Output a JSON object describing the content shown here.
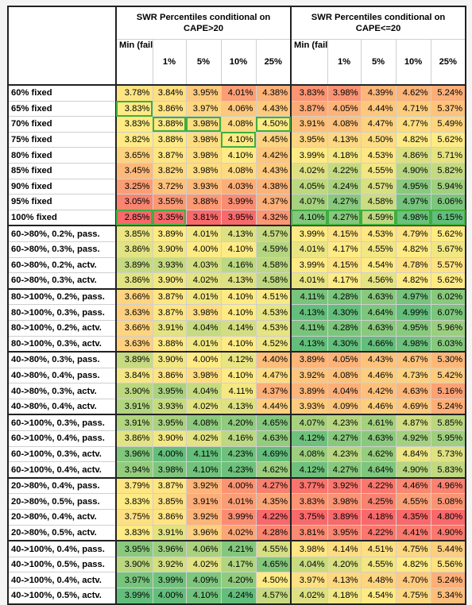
{
  "header": {
    "group_cape_high": "SWR Percentiles conditional on CAPE>20",
    "group_cape_low": "SWR Percentiles conditional on CAPE<=20",
    "columns": [
      "Min (fail-safe)",
      "1%",
      "5%",
      "10%",
      "25%"
    ]
  },
  "rows": [
    {
      "label": "60% fixed",
      "high": [
        "3.78%",
        "3.84%",
        "3.95%",
        "4.01%",
        "4.38%"
      ],
      "low": [
        "3.83%",
        "3.98%",
        "4.39%",
        "4.62%",
        "5.24%"
      ]
    },
    {
      "label": "65% fixed",
      "high": [
        "3.83%",
        "3.86%",
        "3.97%",
        "4.06%",
        "4.43%"
      ],
      "low": [
        "3.87%",
        "4.05%",
        "4.44%",
        "4.71%",
        "5.37%"
      ]
    },
    {
      "label": "70% fixed",
      "high": [
        "3.83%",
        "3.88%",
        "3.98%",
        "4.08%",
        "4.50%"
      ],
      "low": [
        "3.91%",
        "4.08%",
        "4.47%",
        "4.77%",
        "5.49%"
      ]
    },
    {
      "label": "75% fixed",
      "high": [
        "3.82%",
        "3.88%",
        "3.98%",
        "4.10%",
        "4.45%"
      ],
      "low": [
        "3.95%",
        "4.13%",
        "4.50%",
        "4.82%",
        "5.62%"
      ]
    },
    {
      "label": "80% fixed",
      "high": [
        "3.65%",
        "3.87%",
        "3.98%",
        "4.10%",
        "4.42%"
      ],
      "low": [
        "3.99%",
        "4.18%",
        "4.53%",
        "4.86%",
        "5.71%"
      ]
    },
    {
      "label": "85% fixed",
      "high": [
        "3.45%",
        "3.82%",
        "3.98%",
        "4.08%",
        "4.43%"
      ],
      "low": [
        "4.02%",
        "4.22%",
        "4.55%",
        "4.90%",
        "5.82%"
      ]
    },
    {
      "label": "90% fixed",
      "high": [
        "3.25%",
        "3.72%",
        "3.93%",
        "4.03%",
        "4.38%"
      ],
      "low": [
        "4.05%",
        "4.24%",
        "4.57%",
        "4.95%",
        "5.94%"
      ]
    },
    {
      "label": "95% fixed",
      "high": [
        "3.05%",
        "3.55%",
        "3.88%",
        "3.99%",
        "4.37%"
      ],
      "low": [
        "4.07%",
        "4.27%",
        "4.58%",
        "4.97%",
        "6.06%"
      ]
    },
    {
      "label": "100% fixed",
      "high": [
        "2.85%",
        "3.35%",
        "3.81%",
        "3.95%",
        "4.32%"
      ],
      "low": [
        "4.10%",
        "4.27%",
        "4.59%",
        "4.98%",
        "6.15%"
      ]
    },
    {
      "label": "60->80%, 0.2%, pass.",
      "high": [
        "3.85%",
        "3.89%",
        "4.01%",
        "4.13%",
        "4.57%"
      ],
      "low": [
        "3.99%",
        "4.15%",
        "4.53%",
        "4.79%",
        "5.62%"
      ]
    },
    {
      "label": "60->80%, 0.3%, pass.",
      "high": [
        "3.86%",
        "3.90%",
        "4.00%",
        "4.10%",
        "4.59%"
      ],
      "low": [
        "4.01%",
        "4.17%",
        "4.55%",
        "4.82%",
        "5.67%"
      ]
    },
    {
      "label": "60->80%, 0.2%, actv.",
      "high": [
        "3.89%",
        "3.93%",
        "4.03%",
        "4.16%",
        "4.58%"
      ],
      "low": [
        "3.99%",
        "4.15%",
        "4.54%",
        "4.78%",
        "5.57%"
      ]
    },
    {
      "label": "60->80%, 0.3%, actv.",
      "high": [
        "3.86%",
        "3.90%",
        "4.02%",
        "4.13%",
        "4.58%"
      ],
      "low": [
        "4.01%",
        "4.17%",
        "4.56%",
        "4.82%",
        "5.62%"
      ]
    },
    {
      "label": "80->100%, 0.2%, pass.",
      "high": [
        "3.66%",
        "3.87%",
        "4.01%",
        "4.10%",
        "4.51%"
      ],
      "low": [
        "4.11%",
        "4.28%",
        "4.63%",
        "4.97%",
        "6.02%"
      ]
    },
    {
      "label": "80->100%, 0.3%, pass.",
      "high": [
        "3.63%",
        "3.87%",
        "3.98%",
        "4.10%",
        "4.53%"
      ],
      "low": [
        "4.13%",
        "4.30%",
        "4.64%",
        "4.99%",
        "6.07%"
      ]
    },
    {
      "label": "80->100%, 0.2%, actv.",
      "high": [
        "3.66%",
        "3.91%",
        "4.04%",
        "4.14%",
        "4.53%"
      ],
      "low": [
        "4.11%",
        "4.28%",
        "4.63%",
        "4.95%",
        "5.96%"
      ]
    },
    {
      "label": "80->100%, 0.3%, actv.",
      "high": [
        "3.63%",
        "3.88%",
        "4.01%",
        "4.10%",
        "4.52%"
      ],
      "low": [
        "4.13%",
        "4.30%",
        "4.66%",
        "4.98%",
        "6.03%"
      ]
    },
    {
      "label": "40->80%, 0.3%, pass.",
      "high": [
        "3.89%",
        "3.90%",
        "4.00%",
        "4.12%",
        "4.40%"
      ],
      "low": [
        "3.89%",
        "4.05%",
        "4.43%",
        "4.67%",
        "5.30%"
      ]
    },
    {
      "label": "40->80%, 0.4%, pass.",
      "high": [
        "3.84%",
        "3.86%",
        "3.98%",
        "4.10%",
        "4.47%"
      ],
      "low": [
        "3.92%",
        "4.08%",
        "4.46%",
        "4.73%",
        "5.42%"
      ]
    },
    {
      "label": "40->80%, 0.3%, actv.",
      "high": [
        "3.90%",
        "3.95%",
        "4.04%",
        "4.11%",
        "4.37%"
      ],
      "low": [
        "3.89%",
        "4.04%",
        "4.42%",
        "4.63%",
        "5.16%"
      ]
    },
    {
      "label": "40->80%, 0.4%, actv.",
      "high": [
        "3.91%",
        "3.93%",
        "4.02%",
        "4.13%",
        "4.44%"
      ],
      "low": [
        "3.93%",
        "4.09%",
        "4.46%",
        "4.69%",
        "5.24%"
      ]
    },
    {
      "label": "60->100%, 0.3%, pass.",
      "high": [
        "3.91%",
        "3.95%",
        "4.08%",
        "4.20%",
        "4.65%"
      ],
      "low": [
        "4.07%",
        "4.23%",
        "4.61%",
        "4.87%",
        "5.85%"
      ]
    },
    {
      "label": "60->100%, 0.4%, pass.",
      "high": [
        "3.86%",
        "3.90%",
        "4.02%",
        "4.16%",
        "4.63%"
      ],
      "low": [
        "4.12%",
        "4.27%",
        "4.63%",
        "4.92%",
        "5.95%"
      ]
    },
    {
      "label": "60->100%, 0.3%, actv.",
      "high": [
        "3.96%",
        "4.00%",
        "4.11%",
        "4.23%",
        "4.69%"
      ],
      "low": [
        "4.08%",
        "4.23%",
        "4.62%",
        "4.84%",
        "5.73%"
      ]
    },
    {
      "label": "60->100%, 0.4%, actv.",
      "high": [
        "3.94%",
        "3.98%",
        "4.10%",
        "4.23%",
        "4.62%"
      ],
      "low": [
        "4.12%",
        "4.27%",
        "4.64%",
        "4.90%",
        "5.83%"
      ]
    },
    {
      "label": "20->80%, 0.4%, pass.",
      "high": [
        "3.79%",
        "3.87%",
        "3.92%",
        "4.00%",
        "4.27%"
      ],
      "low": [
        "3.77%",
        "3.92%",
        "4.22%",
        "4.46%",
        "4.96%"
      ]
    },
    {
      "label": "20->80%, 0.5%, pass.",
      "high": [
        "3.83%",
        "3.85%",
        "3.91%",
        "4.01%",
        "4.35%"
      ],
      "low": [
        "3.83%",
        "3.98%",
        "4.25%",
        "4.55%",
        "5.08%"
      ]
    },
    {
      "label": "20->80%, 0.4%, actv.",
      "high": [
        "3.75%",
        "3.86%",
        "3.92%",
        "3.99%",
        "4.22%"
      ],
      "low": [
        "3.75%",
        "3.89%",
        "4.18%",
        "4.35%",
        "4.80%"
      ]
    },
    {
      "label": "20->80%, 0.5%, actv.",
      "high": [
        "3.83%",
        "3.91%",
        "3.96%",
        "4.02%",
        "4.28%"
      ],
      "low": [
        "3.81%",
        "3.95%",
        "4.22%",
        "4.41%",
        "4.90%"
      ]
    },
    {
      "label": "40->100%, 0.4%, pass.",
      "high": [
        "3.95%",
        "3.96%",
        "4.06%",
        "4.21%",
        "4.55%"
      ],
      "low": [
        "3.98%",
        "4.14%",
        "4.51%",
        "4.75%",
        "5.44%"
      ]
    },
    {
      "label": "40->100%, 0.5%, pass.",
      "high": [
        "3.90%",
        "3.92%",
        "4.02%",
        "4.17%",
        "4.65%"
      ],
      "low": [
        "4.04%",
        "4.20%",
        "4.55%",
        "4.82%",
        "5.56%"
      ]
    },
    {
      "label": "40->100%, 0.4%, actv.",
      "high": [
        "3.97%",
        "3.99%",
        "4.09%",
        "4.20%",
        "4.50%"
      ],
      "low": [
        "3.97%",
        "4.13%",
        "4.48%",
        "4.70%",
        "5.24%"
      ]
    },
    {
      "label": "40->100%, 0.5%, actv.",
      "high": [
        "3.99%",
        "4.00%",
        "4.10%",
        "4.24%",
        "4.57%"
      ],
      "low": [
        "4.02%",
        "4.18%",
        "4.54%",
        "4.75%",
        "5.34%"
      ]
    }
  ],
  "group_starts": [
    0,
    9,
    13,
    17,
    21,
    25,
    29
  ],
  "highlighted_cells": [
    {
      "row": 1,
      "group": "high",
      "col": 0
    },
    {
      "row": 2,
      "group": "high",
      "col": 1
    },
    {
      "row": 2,
      "group": "high",
      "col": 2
    },
    {
      "row": 2,
      "group": "high",
      "col": 4
    },
    {
      "row": 3,
      "group": "high",
      "col": 3
    },
    {
      "row": 8,
      "group": "high",
      "col": 0
    },
    {
      "row": 8,
      "group": "high",
      "col": 1
    },
    {
      "row": 8,
      "group": "low",
      "col": 0
    },
    {
      "row": 8,
      "group": "low",
      "col": 1
    },
    {
      "row": 8,
      "group": "low",
      "col": 2
    },
    {
      "row": 8,
      "group": "low",
      "col": 3
    },
    {
      "row": 8,
      "group": "low",
      "col": 4
    }
  ],
  "colors": {
    "low_end": "#f8696b",
    "mid": "#ffeb84",
    "high_end": "#63be7b",
    "highlight_box": "#3fae3f"
  }
}
